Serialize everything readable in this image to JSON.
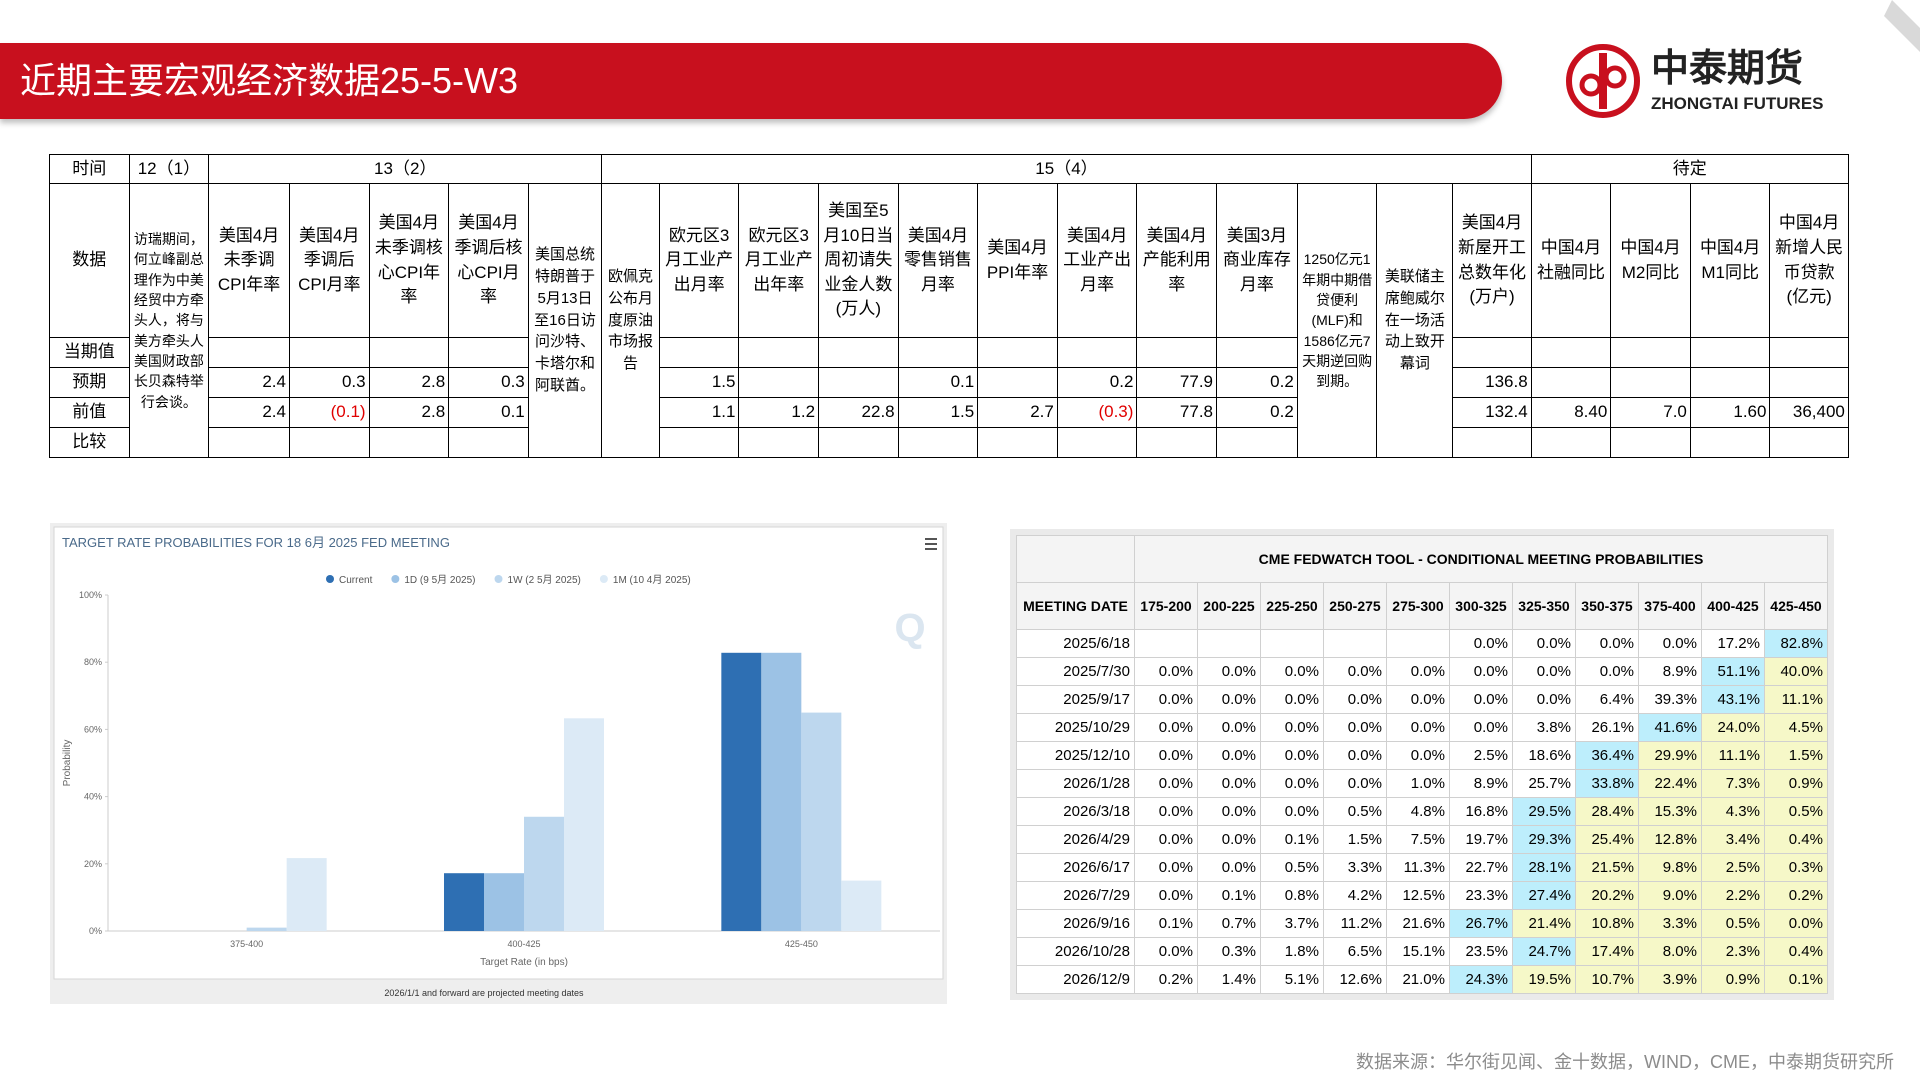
{
  "header": {
    "title": "近期主要宏观经济数据25-5-W3",
    "logo_cn": "中泰期货",
    "logo_en": "ZHONGTAI FUTURES"
  },
  "macro_table": {
    "row_labels": [
      "时间",
      "数据",
      "当期值",
      "预期",
      "前值",
      "比较"
    ],
    "groups": [
      {
        "time": "12（1）",
        "items": [
          {
            "event": "访瑞期间，何立峰副总理作为中美经贸中方牵头人，将与美方牵头人美国财政部长贝森特举行会谈。"
          }
        ]
      },
      {
        "time": "13（2）",
        "items": [
          {
            "name": "美国4月未季调CPI年率",
            "forecast": "2.4",
            "previous": "2.4"
          },
          {
            "name": "美国4月季调后CPI月率",
            "forecast": "0.3",
            "previous": "(0.1)"
          },
          {
            "name": "美国4月未季调核心CPI年率",
            "forecast": "2.8",
            "previous": "2.8"
          },
          {
            "name": "美国4月季调后核心CPI月率",
            "forecast": "0.3",
            "previous": "0.1"
          },
          {
            "event": "美国总统特朗普于5月13日至16日访问沙特、卡塔尔和阿联酋。"
          }
        ]
      },
      {
        "time": "15（4）",
        "items": [
          {
            "event": "欧佩克公布月度原油市场报告"
          },
          {
            "name": "欧元区3月工业产出月率",
            "forecast": "1.5",
            "previous": "1.1"
          },
          {
            "name": "欧元区3月工业产出年率",
            "forecast": null,
            "previous": "1.2"
          },
          {
            "name": "美国至5月10日当周初请失业金人数(万人)",
            "forecast": null,
            "previous": "22.8"
          },
          {
            "name": "美国4月零售销售月率",
            "forecast": "0.1",
            "previous": "1.5"
          },
          {
            "name": "美国4月PPI年率",
            "forecast": null,
            "previous": "2.7"
          },
          {
            "name": "美国4月工业产出月率",
            "forecast": "0.2",
            "previous": "(0.3)"
          },
          {
            "name": "美国4月产能利用率",
            "forecast": "77.9",
            "previous": "77.8"
          },
          {
            "name": "美国3月商业库存月率",
            "forecast": "0.2",
            "previous": "0.2"
          },
          {
            "event": "1250亿元1年期中期借贷便利(MLF)和1586亿元7天期逆回购到期。"
          },
          {
            "event": "美联储主席鲍威尔在一场活动上致开幕词"
          },
          {
            "name": "美国4月新屋开工总数年化(万户)",
            "forecast": "136.8",
            "previous": "132.4"
          }
        ]
      },
      {
        "time": "待定",
        "items": [
          {
            "name": "中国4月社融同比",
            "forecast": null,
            "previous": "8.40"
          },
          {
            "name": "中国4月M2同比",
            "forecast": null,
            "previous": "7.0"
          },
          {
            "name": "中国4月M1同比",
            "forecast": null,
            "previous": "1.60"
          },
          {
            "name": "中国4月新增人民币贷款(亿元)",
            "forecast": null,
            "previous": "36,400"
          }
        ]
      }
    ]
  },
  "chart_data": {
    "type": "bar",
    "title": "TARGET RATE PROBABILITIES FOR 18 6月 2025 FED MEETING",
    "categories": [
      "375-400",
      "400-425",
      "425-450"
    ],
    "series": [
      {
        "name": "Current",
        "color": "#2e6fb3",
        "values": [
          0,
          17.2,
          82.8
        ]
      },
      {
        "name": "1D (9 5月 2025)",
        "color": "#9cc2e5",
        "values": [
          0,
          17.2,
          82.8
        ]
      },
      {
        "name": "1W (2 5月 2025)",
        "color": "#bdd7ee",
        "values": [
          1,
          34,
          65
        ]
      },
      {
        "name": "1M (10 4月 2025)",
        "color": "#dceaf6",
        "values": [
          21.7,
          63.3,
          15
        ]
      }
    ],
    "ylim": [
      0,
      100
    ],
    "yticks": [
      {
        "value": 0,
        "label": "0%"
      },
      {
        "value": 20,
        "label": "20%"
      },
      {
        "value": 40,
        "label": "40%"
      },
      {
        "value": 60,
        "label": "60%"
      },
      {
        "value": 80,
        "label": "80%"
      },
      {
        "value": 100,
        "label": "100%"
      }
    ],
    "ylabel": "Probability",
    "xlabel": "Target Rate (in bps)",
    "note": "2026/1/1 and forward are projected meeting dates",
    "grid": false,
    "legend": "top"
  },
  "fedwatch": {
    "title": "CME FEDWATCH TOOL - CONDITIONAL MEETING PROBABILITIES",
    "columns": [
      "MEETING DATE",
      "175-200",
      "200-225",
      "225-250",
      "250-275",
      "275-300",
      "300-325",
      "325-350",
      "350-375",
      "375-400",
      "400-425",
      "425-450"
    ],
    "rows": [
      {
        "date": "2025/6/18",
        "values": [
          null,
          null,
          null,
          null,
          null,
          "0.0%",
          "0.0%",
          "0.0%",
          "0.0%",
          "17.2%",
          "82.8%"
        ]
      },
      {
        "date": "2025/7/30",
        "values": [
          "0.0%",
          "0.0%",
          "0.0%",
          "0.0%",
          "0.0%",
          "0.0%",
          "0.0%",
          "0.0%",
          "8.9%",
          "51.1%",
          "40.0%"
        ]
      },
      {
        "date": "2025/9/17",
        "values": [
          "0.0%",
          "0.0%",
          "0.0%",
          "0.0%",
          "0.0%",
          "0.0%",
          "0.0%",
          "6.4%",
          "39.3%",
          "43.1%",
          "11.1%"
        ]
      },
      {
        "date": "2025/10/29",
        "values": [
          "0.0%",
          "0.0%",
          "0.0%",
          "0.0%",
          "0.0%",
          "0.0%",
          "3.8%",
          "26.1%",
          "41.6%",
          "24.0%",
          "4.5%"
        ]
      },
      {
        "date": "2025/12/10",
        "values": [
          "0.0%",
          "0.0%",
          "0.0%",
          "0.0%",
          "0.0%",
          "2.5%",
          "18.6%",
          "36.4%",
          "29.9%",
          "11.1%",
          "1.5%"
        ]
      },
      {
        "date": "2026/1/28",
        "values": [
          "0.0%",
          "0.0%",
          "0.0%",
          "0.0%",
          "1.0%",
          "8.9%",
          "25.7%",
          "33.8%",
          "22.4%",
          "7.3%",
          "0.9%"
        ]
      },
      {
        "date": "2026/3/18",
        "values": [
          "0.0%",
          "0.0%",
          "0.0%",
          "0.5%",
          "4.8%",
          "16.8%",
          "29.5%",
          "28.4%",
          "15.3%",
          "4.3%",
          "0.5%"
        ]
      },
      {
        "date": "2026/4/29",
        "values": [
          "0.0%",
          "0.0%",
          "0.1%",
          "1.5%",
          "7.5%",
          "19.7%",
          "29.3%",
          "25.4%",
          "12.8%",
          "3.4%",
          "0.4%"
        ]
      },
      {
        "date": "2026/6/17",
        "values": [
          "0.0%",
          "0.0%",
          "0.5%",
          "3.3%",
          "11.3%",
          "22.7%",
          "28.1%",
          "21.5%",
          "9.8%",
          "2.5%",
          "0.3%"
        ]
      },
      {
        "date": "2026/7/29",
        "values": [
          "0.0%",
          "0.1%",
          "0.8%",
          "4.2%",
          "12.5%",
          "23.3%",
          "27.4%",
          "20.2%",
          "9.0%",
          "2.2%",
          "0.2%"
        ]
      },
      {
        "date": "2026/9/16",
        "values": [
          "0.1%",
          "0.7%",
          "3.7%",
          "11.2%",
          "21.6%",
          "26.7%",
          "21.4%",
          "10.8%",
          "3.3%",
          "0.5%",
          "0.0%"
        ]
      },
      {
        "date": "2026/10/28",
        "values": [
          "0.0%",
          "0.3%",
          "1.8%",
          "6.5%",
          "15.1%",
          "23.5%",
          "24.7%",
          "17.4%",
          "8.0%",
          "2.3%",
          "0.4%"
        ]
      },
      {
        "date": "2026/12/9",
        "values": [
          "0.2%",
          "1.4%",
          "5.1%",
          "12.6%",
          "21.0%",
          "24.3%",
          "19.5%",
          "10.7%",
          "3.9%",
          "0.9%",
          "0.1%"
        ]
      }
    ]
  },
  "source": "数据来源：华尔街见闻、金十数据，WIND，CME，中泰期货研究所"
}
